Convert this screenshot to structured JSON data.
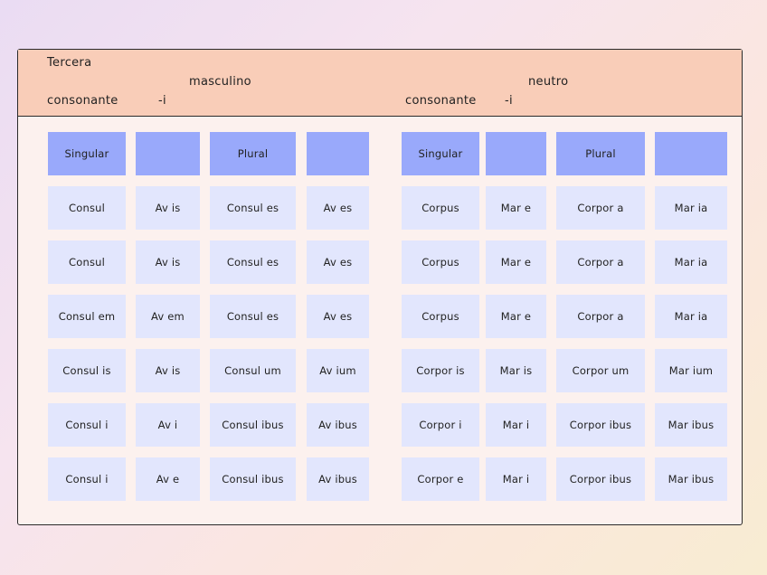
{
  "header": {
    "left_line1": "Tercera",
    "left_line2": "consonante",
    "left_i": "-i",
    "masc_title": "masculino",
    "neut_title": "neutro",
    "right_line2": "consonante",
    "right_i": "-i"
  },
  "masculine": {
    "headers": [
      "Singular",
      "",
      "Plural",
      ""
    ],
    "rows": [
      [
        "Consul",
        "Av is",
        "Consul es",
        "Av es"
      ],
      [
        "Consul",
        "Av is",
        "Consul es",
        "Av es"
      ],
      [
        "Consul em",
        "Av em",
        "Consul es",
        "Av es"
      ],
      [
        "Consul is",
        "Av is",
        "Consul um",
        "Av ium"
      ],
      [
        "Consul i",
        "Av i",
        "Consul ibus",
        "Av ibus"
      ],
      [
        "Consul i",
        "Av e",
        "Consul ibus",
        "Av ibus"
      ]
    ]
  },
  "neuter": {
    "headers": [
      "Singular",
      "",
      "Plural",
      ""
    ],
    "rows": [
      [
        "Corpus",
        "Mar e",
        "Corpor a",
        "Mar ia"
      ],
      [
        "Corpus",
        "Mar e",
        "Corpor a",
        "Mar ia"
      ],
      [
        "Corpus",
        "Mar e",
        "Corpor a",
        "Mar ia"
      ],
      [
        "Corpor is",
        "Mar is",
        "Corpor um",
        "Mar ium"
      ],
      [
        "Corpor i",
        "Mar i",
        "Corpor ibus",
        "Mar ibus"
      ],
      [
        "Corpor e",
        "Mar i",
        "Corpor ibus",
        "Mar ibus"
      ]
    ]
  },
  "colors": {
    "header_bg": "#f9cdb8",
    "header_cell": "#99a9fb",
    "body_cell": "#e2e6fd",
    "card_bg": "#fcf1ee"
  }
}
